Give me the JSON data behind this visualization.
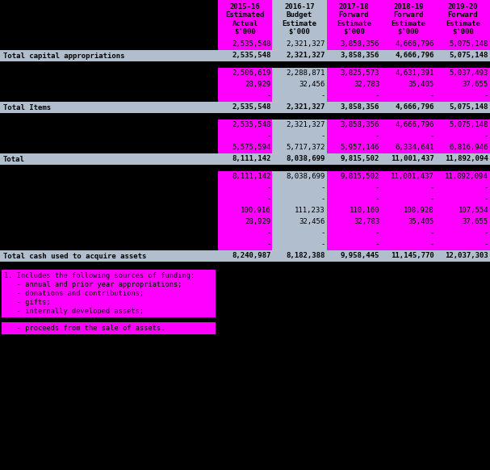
{
  "col_headers": [
    "2015-16\nEstimated\nActual\n$'000",
    "2016-17\nBudget\nEstimate\n$'000",
    "2017-18\nForward\nEstimate\n$'000",
    "2018-19\nForward\nEstimate\n$'000",
    "2019-20\nForward\nEstimate\n$'000"
  ],
  "rows": [
    {
      "label": "",
      "values": [
        "2,535,548",
        "2,321,327",
        "3,858,356",
        "4,666,796",
        "5,075,148"
      ],
      "type": "data"
    },
    {
      "label": "Total capital appropriations",
      "values": [
        "2,535,548",
        "2,321,327",
        "3,858,356",
        "4,666,796",
        "5,075,148"
      ],
      "type": "total"
    },
    {
      "label": "",
      "values": [],
      "type": "spacer"
    },
    {
      "label": "",
      "values": [
        "2,506,619",
        "2,288,871",
        "3,825,573",
        "4,631,391",
        "5,037,493"
      ],
      "type": "data"
    },
    {
      "label": "",
      "values": [
        "28,929",
        "32,456",
        "32,783",
        "35,405",
        "37,655"
      ],
      "type": "data"
    },
    {
      "label": "",
      "values": [
        "-",
        "-",
        "-",
        "-",
        "-"
      ],
      "type": "data"
    },
    {
      "label": "Total Items",
      "values": [
        "2,535,548",
        "2,321,327",
        "3,858,356",
        "4,666,796",
        "5,075,148"
      ],
      "type": "total"
    },
    {
      "label": "",
      "values": [],
      "type": "spacer"
    },
    {
      "label": "",
      "values": [
        "2,535,548",
        "2,321,327",
        "3,858,356",
        "4,666,796",
        "5,075,148"
      ],
      "type": "data"
    },
    {
      "label": "",
      "values": [
        "-",
        "-",
        "-",
        "-",
        "-"
      ],
      "type": "data"
    },
    {
      "label": "",
      "values": [
        "5,575,594",
        "5,717,372",
        "5,957,146",
        "6,334,641",
        "6,816,946"
      ],
      "type": "data"
    },
    {
      "label": "Total",
      "values": [
        "8,111,142",
        "8,038,699",
        "9,815,502",
        "11,001,437",
        "11,892,094"
      ],
      "type": "total"
    },
    {
      "label": "",
      "values": [],
      "type": "spacer"
    },
    {
      "label": "",
      "values": [
        "8,111,142",
        "8,038,699",
        "9,815,502",
        "11,001,437",
        "11,892,094"
      ],
      "type": "data"
    },
    {
      "label": "",
      "values": [
        "-",
        "-",
        "-",
        "-",
        "-"
      ],
      "type": "data"
    },
    {
      "label": "",
      "values": [
        "-",
        "-",
        "-",
        "-",
        "-"
      ],
      "type": "data"
    },
    {
      "label": "",
      "values": [
        "100,916",
        "111,233",
        "110,160",
        "108,928",
        "107,554"
      ],
      "type": "data"
    },
    {
      "label": "",
      "values": [
        "28,929",
        "32,456",
        "32,783",
        "35,405",
        "37,655"
      ],
      "type": "data"
    },
    {
      "label": "",
      "values": [
        "-",
        "-",
        "-",
        "-",
        "-"
      ],
      "type": "data"
    },
    {
      "label": "",
      "values": [
        "-",
        "-",
        "-",
        "-",
        "-"
      ],
      "type": "data"
    },
    {
      "label": "Total cash used to acquire assets",
      "values": [
        "8,240,987",
        "8,182,388",
        "9,958,445",
        "11,145,770",
        "12,037,303"
      ],
      "type": "total"
    }
  ],
  "footnote1_lines": [
    "1. Includes the following sources of funding:",
    "   - annual and prior year appropriations;",
    "   - donations and contributions;",
    "   - gifts;",
    "   - internally developed assets;"
  ],
  "footnote2": "   - proceeds from the sale of assets.",
  "pink": "#FF00FF",
  "lightblue": "#b0bece",
  "black": "#000000",
  "white": "#ffffff"
}
